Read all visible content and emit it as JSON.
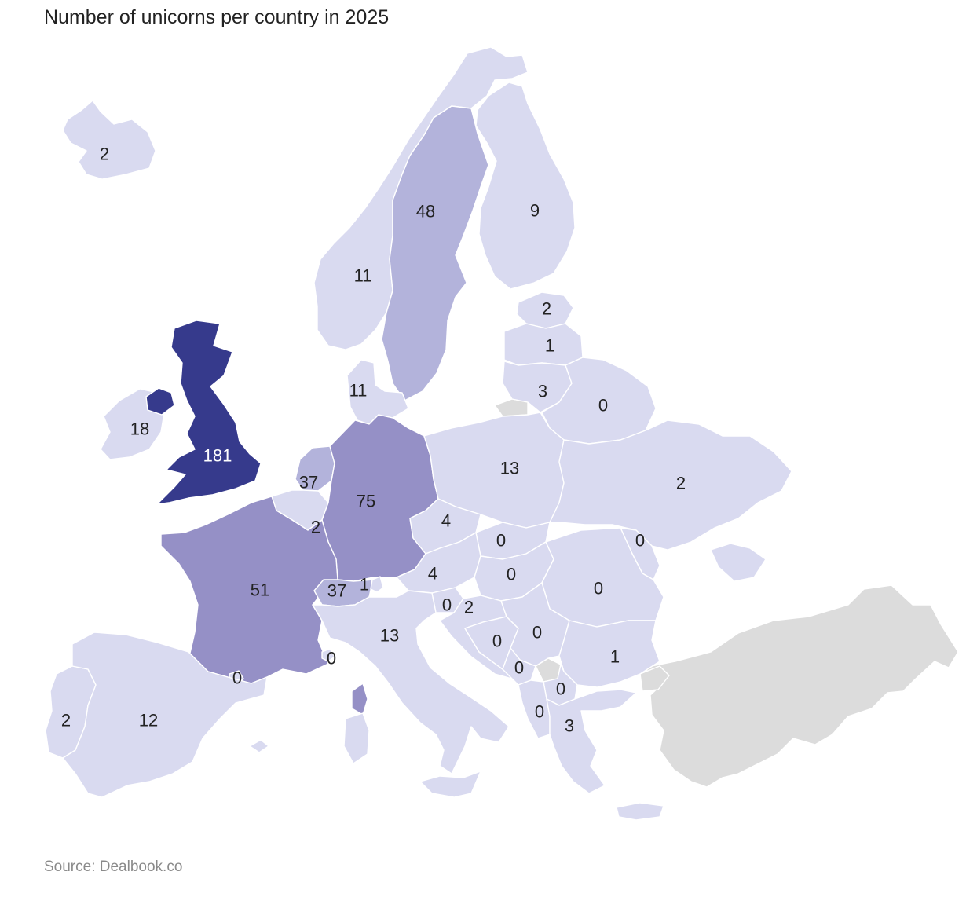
{
  "title": "Number of unicorns per country in 2025",
  "source": "Source: Dealbook.co",
  "colors": {
    "scale": [
      "#d9daf0",
      "#b3b3db",
      "#9590c6",
      "#363a8c"
    ],
    "no_data": "#dcdcdc",
    "background": "#ffffff"
  },
  "regions": [
    {
      "id": "iceland",
      "label": "2",
      "value": 2
    },
    {
      "id": "norway",
      "label": "11",
      "value": 11
    },
    {
      "id": "sweden",
      "label": "48",
      "value": 48
    },
    {
      "id": "finland",
      "label": "9",
      "value": 9
    },
    {
      "id": "estonia",
      "label": "2",
      "value": 2
    },
    {
      "id": "latvia",
      "label": "1",
      "value": 1
    },
    {
      "id": "lithuania",
      "label": "3",
      "value": 3
    },
    {
      "id": "belarus",
      "label": "0",
      "value": 0
    },
    {
      "id": "denmark",
      "label": "11",
      "value": 11
    },
    {
      "id": "ireland",
      "label": "18",
      "value": 18
    },
    {
      "id": "united-kingdom",
      "label": "181",
      "value": 181
    },
    {
      "id": "netherlands",
      "label": "37",
      "value": 37
    },
    {
      "id": "belgium",
      "label": "2",
      "value": 2
    },
    {
      "id": "germany",
      "label": "75",
      "value": 75
    },
    {
      "id": "poland",
      "label": "13",
      "value": 13
    },
    {
      "id": "ukraine",
      "label": "2",
      "value": 2
    },
    {
      "id": "czechia",
      "label": "4",
      "value": 4
    },
    {
      "id": "slovakia",
      "label": "0",
      "value": 0
    },
    {
      "id": "moldova",
      "label": "0",
      "value": 0
    },
    {
      "id": "austria",
      "label": "4",
      "value": 4
    },
    {
      "id": "hungary",
      "label": "0",
      "value": 0
    },
    {
      "id": "romania",
      "label": "0",
      "value": 0
    },
    {
      "id": "france",
      "label": "51",
      "value": 51
    },
    {
      "id": "switzerland",
      "label": "37",
      "value": 37
    },
    {
      "id": "liechtenstein",
      "label": "1",
      "value": 1
    },
    {
      "id": "slovenia",
      "label": "0",
      "value": 0
    },
    {
      "id": "croatia",
      "label": "2",
      "value": 2
    },
    {
      "id": "italy",
      "label": "13",
      "value": 13
    },
    {
      "id": "monaco",
      "label": "0",
      "value": 0
    },
    {
      "id": "bosnia",
      "label": "0",
      "value": 0
    },
    {
      "id": "serbia",
      "label": "0",
      "value": 0
    },
    {
      "id": "bulgaria",
      "label": "1",
      "value": 1
    },
    {
      "id": "montenegro",
      "label": "0",
      "value": 0
    },
    {
      "id": "north-macedonia",
      "label": "0",
      "value": 0
    },
    {
      "id": "albania",
      "label": "0",
      "value": 0
    },
    {
      "id": "greece",
      "label": "3",
      "value": 3
    },
    {
      "id": "andorra",
      "label": "0",
      "value": 0
    },
    {
      "id": "portugal",
      "label": "2",
      "value": 2
    },
    {
      "id": "spain",
      "label": "12",
      "value": 12
    }
  ],
  "no_data_regions": [
    "turkey",
    "kosovo",
    "kaliningrad"
  ]
}
